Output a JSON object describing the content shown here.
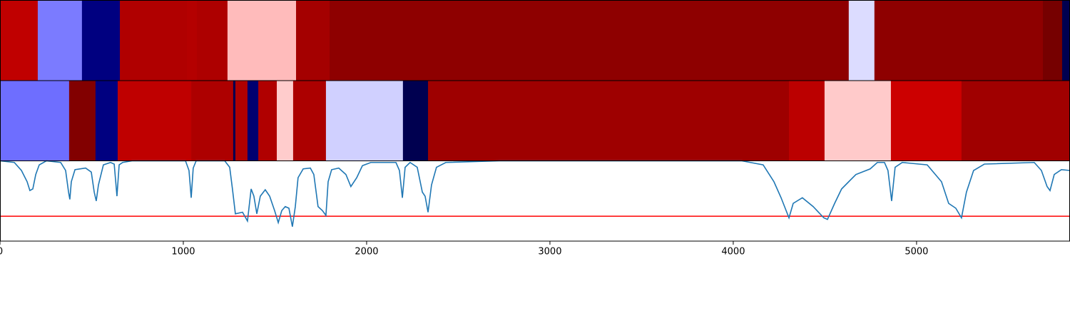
{
  "chart_data": [
    {
      "type": "strip",
      "xlim": [
        0,
        5837
      ],
      "edges": [
        0,
        206,
        447,
        654,
        1019,
        1074,
        1241,
        1615,
        1798,
        4630,
        4770,
        5689,
        5794,
        5837
      ],
      "colors": [
        "#c00000",
        "#7b7bff",
        "#000080",
        "#b00000",
        "#b40000",
        "#ad0000",
        "#ffbbbb",
        "#a40000",
        "#8e0000",
        "#dcdcff",
        "#8e0000",
        "#760000",
        "#000050"
      ]
    },
    {
      "type": "strip",
      "xlim": [
        0,
        5837
      ],
      "edges": [
        0,
        377,
        521,
        642,
        1043,
        1272,
        1284,
        1350,
        1409,
        1510,
        1599,
        1778,
        2198,
        2335,
        4304,
        4498,
        4860,
        5245,
        5837
      ],
      "colors": [
        "#6e6eff",
        "#820000",
        "#000080",
        "#bf0000",
        "#ad0000",
        "#000050",
        "#b00000",
        "#000070",
        "#b00000",
        "#ffcccc",
        "#ac0000",
        "#d0d0ff",
        "#000050",
        "#9e0000",
        "#bb0000",
        "#ffcaca",
        "#cc0000",
        "#a00000"
      ]
    },
    {
      "type": "line",
      "xlim": [
        0,
        5837
      ],
      "ylim": [
        0,
        1
      ],
      "xticks": [
        0,
        1000,
        2000,
        3000,
        4000,
        5000
      ],
      "threshold": 0.31,
      "threshold_color": "#ff0000",
      "series": [
        {
          "color": "#1f77b4",
          "x": [
            0,
            78,
            117,
            148,
            163,
            179,
            195,
            214,
            253,
            331,
            358,
            374,
            381,
            389,
            409,
            467,
            498,
            514,
            525,
            537,
            564,
            603,
            623,
            638,
            650,
            669,
            720,
            1012,
            1031,
            1043,
            1054,
            1070,
            1226,
            1253,
            1268,
            1284,
            1323,
            1350,
            1370,
            1385,
            1401,
            1420,
            1447,
            1471,
            1498,
            1518,
            1537,
            1556,
            1576,
            1595,
            1611,
            1626,
            1654,
            1693,
            1712,
            1735,
            1759,
            1778,
            1790,
            1809,
            1848,
            1887,
            1914,
            1946,
            1977,
            2023,
            2160,
            2179,
            2195,
            2210,
            2237,
            2276,
            2304,
            2319,
            2335,
            2354,
            2381,
            2432,
            2724,
            4047,
            4163,
            4222,
            4261,
            4304,
            4327,
            4377,
            4436,
            4494,
            4514,
            4553,
            4591,
            4630,
            4669,
            4747,
            4786,
            4825,
            4844,
            4864,
            4883,
            4922,
            5058,
            5136,
            5175,
            5214,
            5245,
            5272,
            5311,
            5370,
            5642,
            5681,
            5712,
            5728,
            5751,
            5790,
            5837
          ],
          "values": [
            1.0,
            0.98,
            0.88,
            0.74,
            0.63,
            0.65,
            0.83,
            0.95,
            1.0,
            0.98,
            0.88,
            0.61,
            0.52,
            0.74,
            0.89,
            0.91,
            0.86,
            0.61,
            0.5,
            0.7,
            0.95,
            0.98,
            0.96,
            0.56,
            0.95,
            0.98,
            1.0,
            1.0,
            0.88,
            0.54,
            0.91,
            1.0,
            1.0,
            0.92,
            0.65,
            0.34,
            0.36,
            0.25,
            0.65,
            0.56,
            0.34,
            0.56,
            0.64,
            0.56,
            0.38,
            0.23,
            0.38,
            0.43,
            0.41,
            0.18,
            0.43,
            0.79,
            0.9,
            0.91,
            0.83,
            0.43,
            0.38,
            0.32,
            0.74,
            0.89,
            0.91,
            0.83,
            0.68,
            0.79,
            0.94,
            0.98,
            0.98,
            0.88,
            0.54,
            0.92,
            0.98,
            0.92,
            0.61,
            0.56,
            0.36,
            0.7,
            0.92,
            0.98,
            1.0,
            1.0,
            0.95,
            0.74,
            0.54,
            0.29,
            0.47,
            0.54,
            0.43,
            0.29,
            0.27,
            0.47,
            0.65,
            0.74,
            0.83,
            0.9,
            0.98,
            0.98,
            0.88,
            0.5,
            0.92,
            0.98,
            0.95,
            0.74,
            0.47,
            0.41,
            0.29,
            0.61,
            0.88,
            0.96,
            0.98,
            0.88,
            0.68,
            0.63,
            0.83,
            0.89,
            0.88
          ]
        }
      ]
    }
  ]
}
